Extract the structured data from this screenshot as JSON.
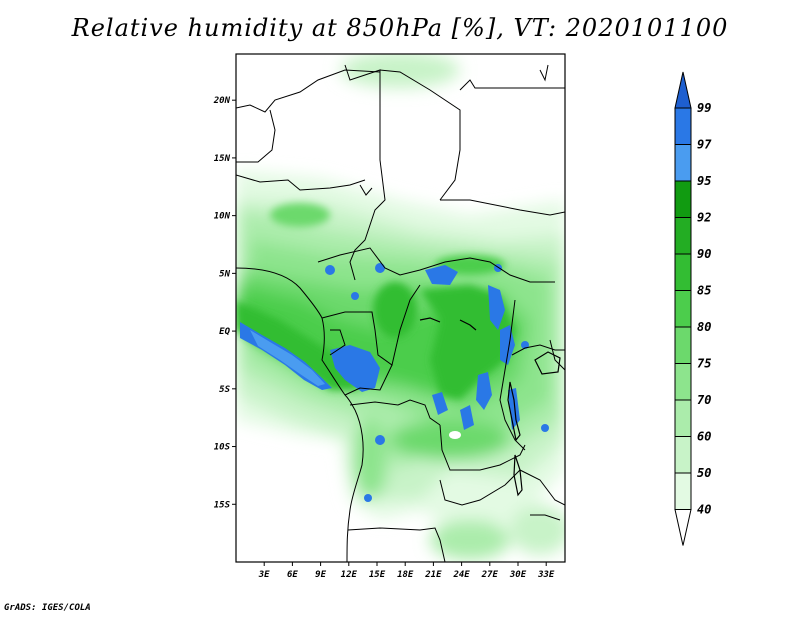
{
  "title": "Relative humidity at 850hPa [%], VT: 2020101100",
  "credit": "GrADS: IGES/COLA",
  "map": {
    "variable": "Relative humidity",
    "level": "850hPa",
    "units": "%",
    "valid_time": "2020101100",
    "lon_range": [
      0,
      35
    ],
    "lat_range": [
      -20,
      24
    ],
    "lat_ticks": [
      {
        "value": 20,
        "label": "20N"
      },
      {
        "value": 15,
        "label": "15N"
      },
      {
        "value": 10,
        "label": "10N"
      },
      {
        "value": 5,
        "label": "5N"
      },
      {
        "value": 0,
        "label": "EQ"
      },
      {
        "value": -5,
        "label": "5S"
      },
      {
        "value": -10,
        "label": "10S"
      },
      {
        "value": -15,
        "label": "15S"
      }
    ],
    "lon_ticks": [
      {
        "value": 3,
        "label": "3E"
      },
      {
        "value": 6,
        "label": "6E"
      },
      {
        "value": 9,
        "label": "9E"
      },
      {
        "value": 12,
        "label": "12E"
      },
      {
        "value": 15,
        "label": "15E"
      },
      {
        "value": 18,
        "label": "18E"
      },
      {
        "value": 21,
        "label": "21E"
      },
      {
        "value": 24,
        "label": "24E"
      },
      {
        "value": 27,
        "label": "27E"
      },
      {
        "value": 30,
        "label": "30E"
      },
      {
        "value": 33,
        "label": "33E"
      }
    ]
  },
  "colorbar": {
    "levels": [
      "99",
      "97",
      "95",
      "92",
      "90",
      "85",
      "80",
      "75",
      "70",
      "60",
      "50",
      "40"
    ],
    "colors": [
      "#1e5fd0",
      "#2a78e6",
      "#4a9cf0",
      "#119b11",
      "#23ad23",
      "#33bd33",
      "#4ccd4c",
      "#6cd96c",
      "#8de48d",
      "#abecab",
      "#c8f3c8",
      "#e3fae3",
      "#ffffff"
    ],
    "top_arrow_color": "#1e5fd0",
    "bottom_arrow_color": "#ffffff"
  }
}
